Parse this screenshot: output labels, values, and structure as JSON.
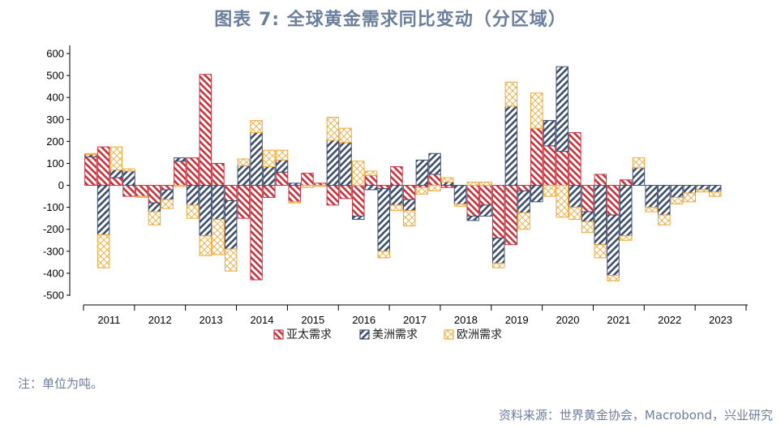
{
  "header": {
    "title": "图表 7:  全球黄金需求同比变动（分区域）"
  },
  "footer": {
    "note": "注：单位为吨。",
    "source": "资料来源：世界黄金协会，Macrobond，兴业研究"
  },
  "colors": {
    "asia": "#c8343e",
    "americas": "#3f4f6e",
    "europe": "#f0a93a"
  },
  "chart_data": {
    "type": "bar",
    "stacked": true,
    "title": "图表 7:  全球黄金需求同比变动（分区域）",
    "ylim": [
      -500,
      600
    ],
    "yticks": [
      600,
      500,
      400,
      300,
      200,
      100,
      0,
      -100,
      -200,
      -300,
      -400,
      -500
    ],
    "xlabel": "",
    "ylabel": "",
    "grid": false,
    "legend_position": "bottom",
    "years": [
      "2011",
      "2012",
      "2013",
      "2014",
      "2015",
      "2016",
      "2017",
      "2018",
      "2019",
      "2020",
      "2021",
      "2022",
      "2023"
    ],
    "categories": [
      "2011Q1",
      "2011Q2",
      "2011Q3",
      "2011Q4",
      "2012Q1",
      "2012Q2",
      "2012Q3",
      "2012Q4",
      "2013Q1",
      "2013Q2",
      "2013Q3",
      "2013Q4",
      "2014Q1",
      "2014Q2",
      "2014Q3",
      "2014Q4",
      "2015Q1",
      "2015Q2",
      "2015Q3",
      "2015Q4",
      "2016Q1",
      "2016Q2",
      "2016Q3",
      "2016Q4",
      "2017Q1",
      "2017Q2",
      "2017Q3",
      "2017Q4",
      "2018Q1",
      "2018Q2",
      "2018Q3",
      "2018Q4",
      "2019Q1",
      "2019Q2",
      "2019Q3",
      "2019Q4",
      "2020Q1",
      "2020Q2",
      "2020Q3",
      "2020Q4",
      "2021Q1",
      "2021Q2",
      "2021Q3",
      "2021Q4",
      "2022Q1",
      "2022Q2",
      "2022Q3",
      "2022Q4",
      "2023Q1",
      "2023Q2"
    ],
    "series": [
      {
        "name": "亚太需求",
        "key": "asia",
        "values": [
          130,
          175,
          35,
          -50,
          -50,
          -80,
          -20,
          110,
          125,
          505,
          100,
          -70,
          -150,
          -430,
          -55,
          60,
          -75,
          55,
          10,
          -90,
          -60,
          -140,
          45,
          -15,
          85,
          -65,
          -10,
          50,
          -10,
          0,
          -140,
          -90,
          -240,
          -270,
          -25,
          260,
          180,
          155,
          240,
          -120,
          50,
          -135,
          25,
          0,
          0,
          0,
          0,
          0,
          0,
          0
        ]
      },
      {
        "name": "美洲需求",
        "key": "americas",
        "values": [
          10,
          -225,
          35,
          65,
          0,
          -40,
          -45,
          15,
          -90,
          -230,
          -155,
          -220,
          90,
          240,
          85,
          55,
          10,
          0,
          0,
          205,
          195,
          -15,
          -20,
          -285,
          -90,
          -50,
          115,
          95,
          15,
          -85,
          -20,
          -50,
          -115,
          360,
          -100,
          -75,
          115,
          385,
          -100,
          -45,
          -270,
          -275,
          -230,
          80,
          -100,
          -135,
          -55,
          -35,
          -20,
          -30
        ]
      },
      {
        "name": "欧洲需求",
        "key": "europe",
        "values": [
          5,
          -150,
          105,
          10,
          -5,
          -60,
          -40,
          -5,
          -60,
          -90,
          -160,
          -100,
          30,
          55,
          75,
          45,
          -5,
          -10,
          -5,
          105,
          65,
          110,
          20,
          -30,
          -25,
          -70,
          -30,
          -25,
          20,
          -10,
          15,
          15,
          -20,
          110,
          -75,
          160,
          -50,
          -145,
          -55,
          -50,
          -60,
          -25,
          -20,
          45,
          -20,
          -45,
          -30,
          -40,
          -10,
          -20
        ]
      }
    ]
  }
}
